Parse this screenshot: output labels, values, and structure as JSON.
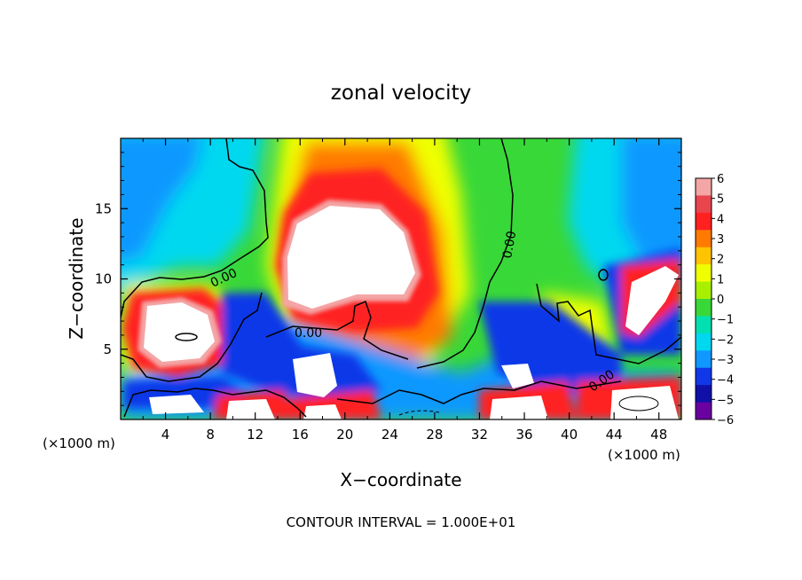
{
  "chart_data": {
    "type": "heatmap",
    "title": "zonal velocity",
    "xlabel": "X−coordinate",
    "ylabel": "Z−coordinate",
    "x_unit_left": "(×1000 m)",
    "x_unit_right": "(×1000 m)",
    "xlim": [
      0,
      50
    ],
    "ylim": [
      0,
      20
    ],
    "x_ticks": [
      4,
      8,
      12,
      16,
      20,
      24,
      28,
      32,
      36,
      40,
      44,
      48
    ],
    "y_ticks": [
      5,
      10,
      15
    ],
    "colorbar": {
      "range": [
        -6,
        6
      ],
      "ticks": [
        "6",
        "5",
        "4",
        "3",
        "2",
        "1",
        "0",
        "−1",
        "−2",
        "−3",
        "−4",
        "−5",
        "−6"
      ],
      "colors": [
        "#f4a6a6",
        "#e8454f",
        "#ff2020",
        "#ff7a00",
        "#ffc400",
        "#f0ff00",
        "#a8f000",
        "#38d838",
        "#00e0b0",
        "#00d8f0",
        "#1098ff",
        "#1038e8",
        "#1010a8",
        "#6a00a0"
      ]
    },
    "contour_labels": [
      "0.00",
      "0.00",
      "0.00",
      "0.00"
    ],
    "footer": "CONTOUR INTERVAL = 1.000E+01"
  }
}
